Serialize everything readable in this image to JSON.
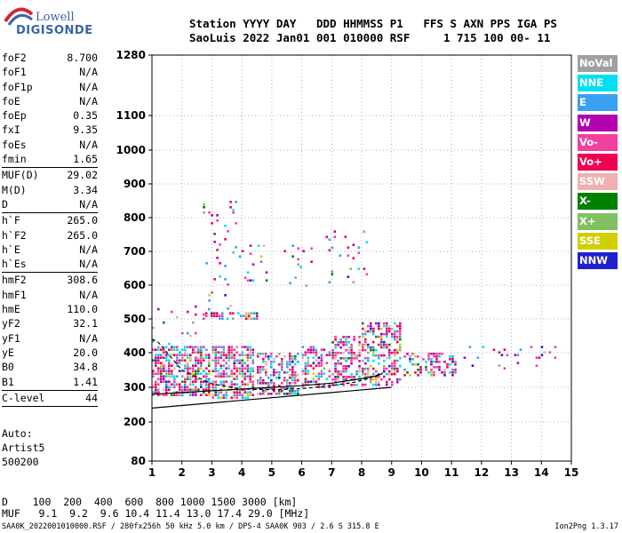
{
  "logo": {
    "line1": "Lowell",
    "line2": "DIGISONDE"
  },
  "header": {
    "line1": "Station YYYY DAY   DDD HHMMSS P1   FFS S AXN PPS IGA PS",
    "line2": "SaoLuis 2022 Jan01 001 010000 RSF     1 715 100 00- 11"
  },
  "params": [
    {
      "name": "foF2",
      "value": "8.700"
    },
    {
      "name": "foF1",
      "value": "N/A"
    },
    {
      "name": "foF1p",
      "value": "N/A"
    },
    {
      "name": "foE",
      "value": "N/A"
    },
    {
      "name": "foEp",
      "value": "0.35"
    },
    {
      "name": "fxI",
      "value": "9.35"
    },
    {
      "name": "foEs",
      "value": "N/A"
    },
    {
      "name": "fmin",
      "value": "1.65",
      "sep": true
    },
    {
      "name": "MUF(D)",
      "value": "29.02"
    },
    {
      "name": "M(D)",
      "value": "3.34"
    },
    {
      "name": "D",
      "value": "N/A",
      "sep": true
    },
    {
      "name": "h`F",
      "value": "265.0"
    },
    {
      "name": "h`F2",
      "value": "265.0"
    },
    {
      "name": "h`E",
      "value": "N/A"
    },
    {
      "name": "h`Es",
      "value": "N/A",
      "sep": true
    },
    {
      "name": "hmF2",
      "value": "308.6"
    },
    {
      "name": "hmF1",
      "value": "N/A"
    },
    {
      "name": "hmE",
      "value": "110.0"
    },
    {
      "name": "yF2",
      "value": "32.1"
    },
    {
      "name": "yF1",
      "value": "N/A"
    },
    {
      "name": "yE",
      "value": "20.0"
    },
    {
      "name": "B0",
      "value": "34.8"
    },
    {
      "name": "B1",
      "value": "1.41",
      "sep": true
    },
    {
      "name": "C-level",
      "value": "44",
      "sep": true
    }
  ],
  "auto": {
    "line1": "Auto:",
    "line2": "Artist5",
    "line3": "500200"
  },
  "legend": [
    {
      "label": "NoVal",
      "color": "#a0a0a0"
    },
    {
      "label": "NNE",
      "color": "#00e0f0"
    },
    {
      "label": "E",
      "color": "#3aa0f0"
    },
    {
      "label": "W",
      "color": "#b000b0"
    },
    {
      "label": "Vo-",
      "color": "#f040a0"
    },
    {
      "label": "Vo+",
      "color": "#f00050"
    },
    {
      "label": "SSW",
      "color": "#f0b0b0"
    },
    {
      "label": "X-",
      "color": "#008000"
    },
    {
      "label": "X+",
      "color": "#80c060"
    },
    {
      "label": "SSE",
      "color": "#d0d000"
    },
    {
      "label": "NNW",
      "color": "#2020d0"
    }
  ],
  "dtable": {
    "line1": "D    100  200  400  600  800 1000 1500 3000 [km]",
    "line2": "MUF   9.1  9.2  9.6 10.4 11.4 13.0 17.4 29.0 [MHz]"
  },
  "footer": "SAA0K_2022001010000.RSF / 280fx256h 50 kHz 5.0 km / DPS-4 SAA0K 903 / 2.6 S 315.8 E",
  "version": "Ion2Png 1.3.17",
  "chart_data": {
    "type": "scatter",
    "x_ticks": [
      "1",
      "2",
      "3",
      "4",
      "5",
      "6",
      "7",
      "8",
      "9",
      "10",
      "11",
      "12",
      "13",
      "14",
      "15"
    ],
    "y_ticks": [
      "80",
      "200",
      "300",
      "400",
      "500",
      "600",
      "700",
      "800",
      "900",
      "1000",
      "1100",
      "1280"
    ],
    "xlim": [
      1,
      15
    ],
    "ylim": [
      80,
      1280
    ],
    "grid": true,
    "legend_placement": "right",
    "trace_curves": {
      "lower_line": {
        "x": [
          1,
          9
        ],
        "y": [
          240,
          300
        ]
      },
      "dashed_profile": {
        "x": [
          1,
          1.2,
          1.5,
          2,
          3,
          4,
          5,
          6,
          7,
          7.8,
          8.3,
          8.7
        ],
        "y": [
          440,
          432,
          400,
          350,
          310,
          295,
          293,
          296,
          305,
          315,
          328,
          342
        ]
      },
      "solid_profile": {
        "x": [
          1,
          2,
          3,
          4,
          5,
          6,
          7,
          8,
          8.5,
          8.7
        ],
        "y": [
          280,
          285,
          290,
          295,
          300,
          305,
          312,
          325,
          333,
          340
        ]
      }
    },
    "echo_clusters": [
      {
        "x": [
          1,
          3
        ],
        "y": [
          270,
          420
        ],
        "density": 0.65
      },
      {
        "x": [
          3,
          4.5
        ],
        "y": [
          265,
          420
        ],
        "density": 0.6
      },
      {
        "x": [
          4.5,
          6
        ],
        "y": [
          270,
          400
        ],
        "density": 0.55
      },
      {
        "x": [
          6,
          7
        ],
        "y": [
          290,
          420
        ],
        "density": 0.5
      },
      {
        "x": [
          7,
          8
        ],
        "y": [
          300,
          450
        ],
        "density": 0.5
      },
      {
        "x": [
          8,
          9.4
        ],
        "y": [
          300,
          490
        ],
        "density": 0.5
      },
      {
        "x": [
          9.4,
          11.2
        ],
        "y": [
          325,
          400
        ],
        "density": 0.45
      },
      {
        "x": [
          2.6,
          4.6
        ],
        "y": [
          490,
          520
        ],
        "density": 0.5
      },
      {
        "x": [
          2.7,
          3.9
        ],
        "y": [
          520,
          850
        ],
        "density": 0.08
      },
      {
        "x": [
          3.9,
          5
        ],
        "y": [
          600,
          720
        ],
        "density": 0.1
      },
      {
        "x": [
          5.4,
          6.4
        ],
        "y": [
          580,
          720
        ],
        "density": 0.06
      },
      {
        "x": [
          6.8,
          8.4
        ],
        "y": [
          600,
          770
        ],
        "density": 0.05
      },
      {
        "x": [
          1,
          3
        ],
        "y": [
          420,
          540
        ],
        "density": 0.05
      },
      {
        "x": [
          11.4,
          14.6
        ],
        "y": [
          350,
          420
        ],
        "density": 0.06
      }
    ]
  }
}
